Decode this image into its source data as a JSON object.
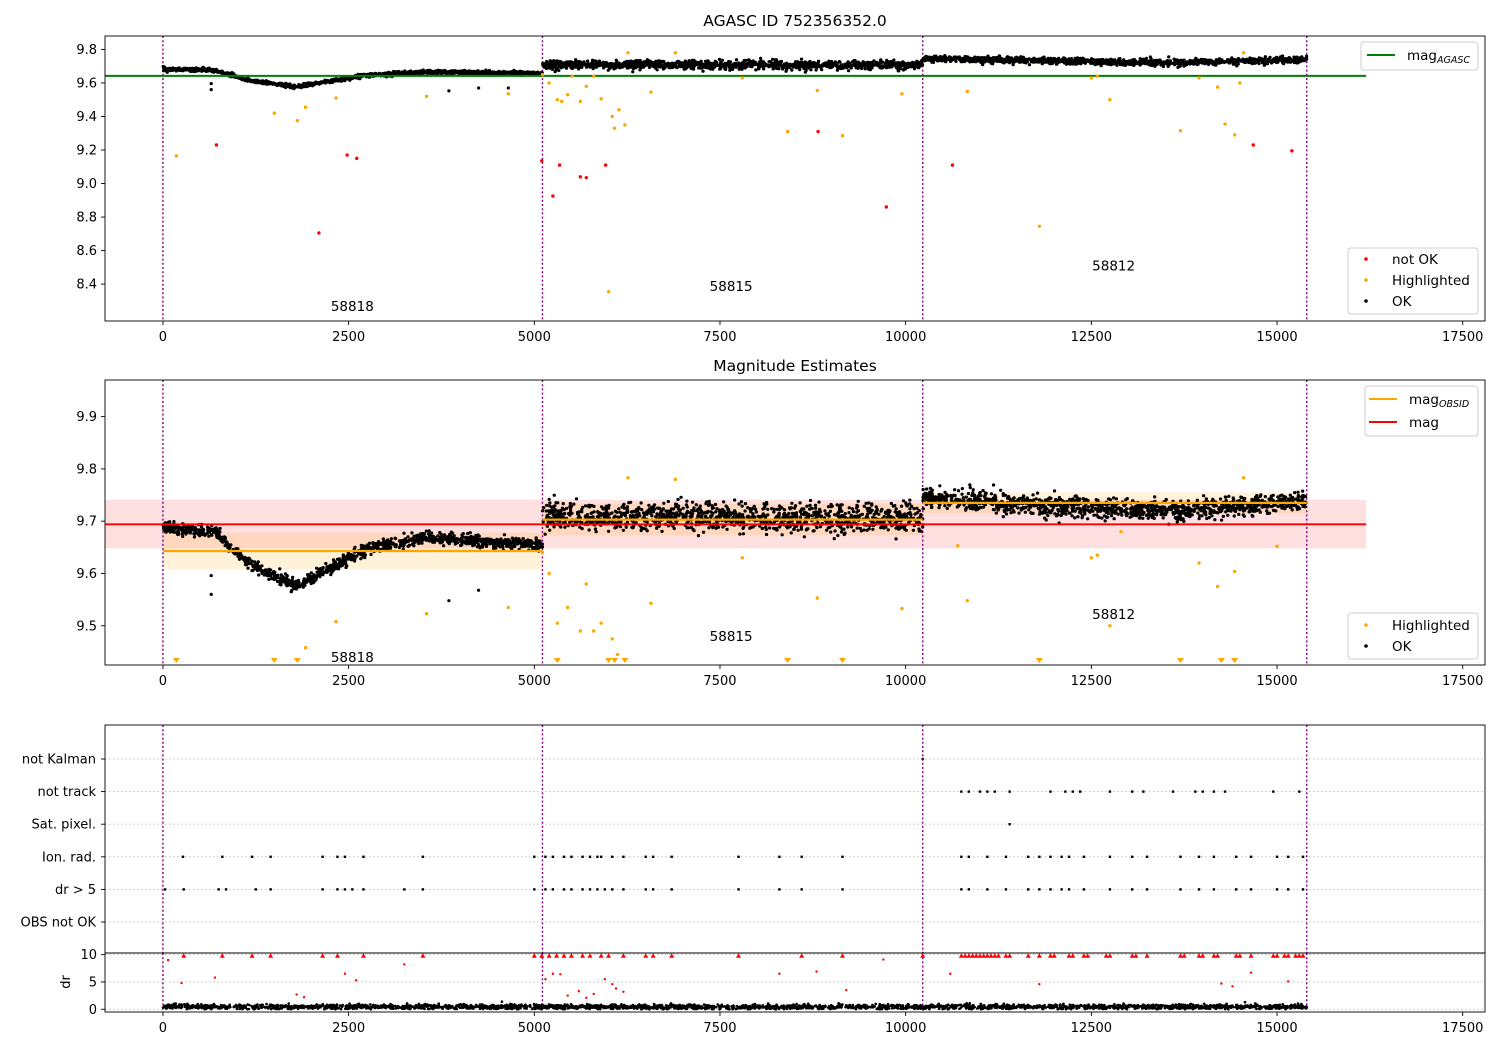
{
  "chart_data": [
    {
      "type": "scatter",
      "title": "AGASC ID 752356352.0",
      "xlim": [
        -780,
        17800
      ],
      "ylim": [
        8.18,
        9.88
      ],
      "x_ticks": [
        0,
        2500,
        5000,
        7500,
        10000,
        12500,
        15000,
        17500
      ],
      "y_ticks": [
        8.4,
        8.6,
        8.8,
        9.0,
        9.2,
        9.4,
        9.6,
        9.8
      ],
      "obsid_boundaries": [
        0,
        5110,
        10230,
        15400
      ],
      "obsid_labels": [
        {
          "text": "58818",
          "x": 2550,
          "y": 8.27
        },
        {
          "text": "58815",
          "x": 7650,
          "y": 8.39
        },
        {
          "text": "58812",
          "x": 12800,
          "y": 8.51
        }
      ],
      "lines": [
        {
          "name": "mag",
          "sub": "AGASC",
          "color": "#008000",
          "x": [
            -780,
            16200
          ],
          "y": [
            9.642,
            9.642
          ]
        }
      ],
      "ok_segments": [
        {
          "x0": 0,
          "x1": 5110,
          "shape": [
            [
              0,
              9.683
            ],
            [
              700,
              9.675
            ],
            [
              1150,
              9.615
            ],
            [
              1800,
              9.577
            ],
            [
              2700,
              9.643
            ],
            [
              3500,
              9.665
            ],
            [
              5110,
              9.658
            ]
          ],
          "noise": 0.013
        },
        {
          "x0": 5110,
          "x1": 10230,
          "shape": [
            [
              5110,
              9.71
            ],
            [
              10230,
              9.705
            ]
          ],
          "noise": 0.03
        },
        {
          "x0": 10230,
          "x1": 15400,
          "shape": [
            [
              10230,
              9.745
            ],
            [
              12700,
              9.725
            ],
            [
              13600,
              9.72
            ],
            [
              15400,
              9.74
            ]
          ],
          "noise": 0.022
        }
      ],
      "ok_outliers": [
        [
          650,
          9.596
        ],
        [
          650,
          9.56
        ],
        [
          3850,
          9.553
        ],
        [
          4250,
          9.57
        ],
        [
          4650,
          9.57
        ]
      ],
      "highlighted": [
        [
          180,
          9.165
        ],
        [
          1500,
          9.42
        ],
        [
          1810,
          9.375
        ],
        [
          1920,
          9.455
        ],
        [
          2330,
          9.51
        ],
        [
          3550,
          9.52
        ],
        [
          4650,
          9.535
        ],
        [
          5110,
          9.65
        ],
        [
          5200,
          9.6
        ],
        [
          5310,
          9.5
        ],
        [
          5370,
          9.49
        ],
        [
          5450,
          9.53
        ],
        [
          5510,
          9.64
        ],
        [
          5620,
          9.49
        ],
        [
          5700,
          9.58
        ],
        [
          5800,
          9.64
        ],
        [
          5900,
          9.505
        ],
        [
          6000,
          8.355
        ],
        [
          6050,
          9.4
        ],
        [
          6080,
          9.33
        ],
        [
          6140,
          9.44
        ],
        [
          6220,
          9.35
        ],
        [
          6260,
          9.78
        ],
        [
          6570,
          9.545
        ],
        [
          6900,
          9.78
        ],
        [
          7800,
          9.63
        ],
        [
          8410,
          9.31
        ],
        [
          8810,
          9.555
        ],
        [
          9150,
          9.285
        ],
        [
          9950,
          9.535
        ],
        [
          10830,
          9.55
        ],
        [
          11800,
          8.745
        ],
        [
          12500,
          9.63
        ],
        [
          12580,
          9.64
        ],
        [
          12750,
          9.5
        ],
        [
          13700,
          9.315
        ],
        [
          13950,
          9.63
        ],
        [
          14200,
          9.575
        ],
        [
          14300,
          9.355
        ],
        [
          14430,
          9.29
        ],
        [
          14500,
          9.6
        ],
        [
          14550,
          9.78
        ]
      ],
      "not_ok": [
        [
          720,
          9.23
        ],
        [
          2100,
          8.705
        ],
        [
          2480,
          9.17
        ],
        [
          2610,
          9.15
        ],
        [
          5100,
          9.135
        ],
        [
          5250,
          8.925
        ],
        [
          5340,
          9.11
        ],
        [
          5620,
          9.04
        ],
        [
          5700,
          9.035
        ],
        [
          5960,
          9.11
        ],
        [
          8820,
          9.31
        ],
        [
          9740,
          8.86
        ],
        [
          10630,
          9.11
        ],
        [
          14680,
          9.23
        ],
        [
          15200,
          9.195
        ]
      ],
      "legend_top": [
        {
          "label": "mag",
          "sub": "AGASC",
          "color": "#008000"
        }
      ],
      "legend_bottom": [
        {
          "label": "not OK",
          "color": "#ff0000"
        },
        {
          "label": "Highlighted",
          "color": "#ffa500"
        },
        {
          "label": "OK",
          "color": "#000000"
        }
      ]
    },
    {
      "type": "scatter",
      "title": "Magnitude Estimates",
      "xlim": [
        -780,
        17800
      ],
      "ylim": [
        9.425,
        9.97
      ],
      "x_ticks": [
        0,
        2500,
        5000,
        7500,
        10000,
        12500,
        15000,
        17500
      ],
      "y_ticks": [
        9.5,
        9.6,
        9.7,
        9.8,
        9.9
      ],
      "obsid_boundaries": [
        0,
        5110,
        10230,
        15400
      ],
      "obsid_labels": [
        {
          "text": "58818",
          "x": 2550,
          "y": 9.44
        },
        {
          "text": "58815",
          "x": 7650,
          "y": 9.48
        },
        {
          "text": "58812",
          "x": 12800,
          "y": 9.523
        }
      ],
      "mean_mag": 9.694,
      "mean_band": [
        9.648,
        9.741
      ],
      "obsid_mags": [
        {
          "x0": 0,
          "x1": 5110,
          "value": 9.643,
          "band": [
            9.608,
            9.678
          ]
        },
        {
          "x0": 5110,
          "x1": 10230,
          "value": 9.703,
          "band": [
            9.673,
            9.733
          ]
        },
        {
          "x0": 10230,
          "x1": 15400,
          "value": 9.735,
          "band": [
            9.715,
            9.755
          ]
        }
      ],
      "ok_segments": [
        {
          "x0": 0,
          "x1": 5110,
          "shape": [
            [
              0,
              9.688
            ],
            [
              700,
              9.68
            ],
            [
              1150,
              9.62
            ],
            [
              1800,
              9.575
            ],
            [
              2700,
              9.645
            ],
            [
              3500,
              9.668
            ],
            [
              5110,
              9.655
            ]
          ],
          "noise": 0.013
        },
        {
          "x0": 5110,
          "x1": 10230,
          "shape": [
            [
              5110,
              9.71
            ],
            [
              10230,
              9.705
            ]
          ],
          "noise": 0.032
        },
        {
          "x0": 10230,
          "x1": 15400,
          "shape": [
            [
              10230,
              9.745
            ],
            [
              12700,
              9.722
            ],
            [
              13600,
              9.72
            ],
            [
              15400,
              9.74
            ]
          ],
          "noise": 0.022
        }
      ],
      "ok_outliers": [
        [
          650,
          9.596
        ],
        [
          650,
          9.56
        ],
        [
          3850,
          9.548
        ],
        [
          4250,
          9.568
        ]
      ],
      "highlighted": [
        [
          2330,
          9.508
        ],
        [
          1920,
          9.458
        ],
        [
          3550,
          9.523
        ],
        [
          4650,
          9.535
        ],
        [
          5110,
          9.64
        ],
        [
          5200,
          9.6
        ],
        [
          5310,
          9.505
        ],
        [
          5450,
          9.535
        ],
        [
          5620,
          9.49
        ],
        [
          5700,
          9.58
        ],
        [
          5800,
          9.49
        ],
        [
          5900,
          9.505
        ],
        [
          6050,
          9.475
        ],
        [
          6120,
          9.445
        ],
        [
          6260,
          9.783
        ],
        [
          6570,
          9.543
        ],
        [
          6900,
          9.78
        ],
        [
          7800,
          9.63
        ],
        [
          8810,
          9.553
        ],
        [
          9950,
          9.533
        ],
        [
          10830,
          9.548
        ],
        [
          12500,
          9.63
        ],
        [
          12580,
          9.635
        ],
        [
          12750,
          9.5
        ],
        [
          13950,
          9.62
        ],
        [
          14200,
          9.575
        ],
        [
          14430,
          9.604
        ],
        [
          14550,
          9.783
        ],
        [
          15000,
          9.652
        ],
        [
          10700,
          9.653
        ],
        [
          12900,
          9.68
        ]
      ],
      "off_scale_low": [
        180,
        1500,
        1810,
        5310,
        6000,
        6080,
        6220,
        8410,
        9150,
        11800,
        13700,
        14250,
        14430
      ],
      "legend_top": [
        {
          "label": "mag",
          "sub": "OBSID",
          "color": "#ffa500"
        },
        {
          "label": "mag",
          "sub": "",
          "color": "#ff0000"
        }
      ],
      "legend_bottom": [
        {
          "label": "Highlighted",
          "color": "#ffa500"
        },
        {
          "label": "OK",
          "color": "#000000"
        }
      ]
    },
    {
      "type": "scatter",
      "title": "",
      "xlim": [
        -780,
        17800
      ],
      "x_ticks": [
        0,
        2500,
        5000,
        7500,
        10000,
        12500,
        15000,
        17500
      ],
      "obsid_boundaries": [
        0,
        5110,
        10230,
        15400
      ],
      "flag_rows": [
        "not Kalman",
        "not track",
        "Sat. pixel.",
        "Ion. rad.",
        "dr > 5",
        "OBS not OK"
      ],
      "flag_points": {
        "not Kalman": [
          10230
        ],
        "not track": [
          10750,
          10850,
          11000,
          11100,
          11200,
          11400,
          11950,
          12150,
          12250,
          12350,
          12750,
          13050,
          13200,
          13600,
          13900,
          14000,
          14150,
          14300,
          14950,
          15300
        ],
        "Sat. pixel.": [
          11400
        ],
        "Ion. rad.": [
          270,
          800,
          1200,
          1450,
          2150,
          2350,
          2450,
          2700,
          3500,
          5000,
          5150,
          5250,
          5400,
          5500,
          5650,
          5750,
          5850,
          5900,
          6050,
          6200,
          6500,
          6600,
          6850,
          7750,
          8300,
          8600,
          9150,
          10750,
          10850,
          11100,
          11350,
          11650,
          11800,
          11950,
          12100,
          12200,
          12400,
          12750,
          13050,
          13250,
          13700,
          13950,
          14150,
          14450,
          14650,
          15000,
          15150,
          15350
        ],
        "dr > 5": [
          30,
          280,
          750,
          850,
          1250,
          1450,
          2150,
          2350,
          2450,
          2550,
          2700,
          3250,
          3500,
          5000,
          5150,
          5250,
          5400,
          5500,
          5650,
          5750,
          5850,
          5950,
          6050,
          6200,
          6500,
          6600,
          6850,
          7750,
          8300,
          8600,
          9150,
          10750,
          10850,
          11100,
          11350,
          11650,
          11800,
          11950,
          12100,
          12200,
          12400,
          12750,
          13050,
          13250,
          13700,
          13950,
          14150,
          14450,
          14650,
          15000,
          15150,
          15350
        ],
        "OBS not OK": []
      },
      "dr_ylim": [
        -0.5,
        10.3
      ],
      "dr_yticks": [
        0,
        5,
        10
      ],
      "dr_ylabel": "dr",
      "dr_low_level": 0.45,
      "dr_spikes": [
        [
          70,
          9
        ],
        [
          250,
          4.8
        ],
        [
          700,
          5.8
        ],
        [
          1800,
          2.7
        ],
        [
          1900,
          2.2
        ],
        [
          2450,
          6.5
        ],
        [
          2600,
          5.3
        ],
        [
          3250,
          8.2
        ],
        [
          5150,
          5.5
        ],
        [
          5250,
          6.5
        ],
        [
          5350,
          6.4
        ],
        [
          5450,
          2.5
        ],
        [
          5600,
          3.3
        ],
        [
          5700,
          2.1
        ],
        [
          5800,
          2.8
        ],
        [
          5950,
          5.5
        ],
        [
          6050,
          4.6
        ],
        [
          6100,
          3.8
        ],
        [
          6200,
          3.2
        ],
        [
          8300,
          6.5
        ],
        [
          8800,
          6.9
        ],
        [
          9200,
          3.5
        ],
        [
          9700,
          9.1
        ],
        [
          10600,
          6.5
        ],
        [
          11800,
          4.6
        ],
        [
          14250,
          4.7
        ],
        [
          14400,
          4.2
        ],
        [
          14650,
          6.7
        ],
        [
          15150,
          5.1
        ]
      ],
      "dr_clipped": [
        280,
        800,
        1200,
        1450,
        2150,
        2350,
        2700,
        3500,
        5000,
        5100,
        5200,
        5300,
        5400,
        5500,
        5650,
        5750,
        5900,
        6000,
        6200,
        6500,
        6600,
        6850,
        7750,
        8600,
        9150,
        10230,
        10750,
        10800,
        10850,
        10900,
        10950,
        11000,
        11050,
        11100,
        11150,
        11200,
        11250,
        11350,
        11400,
        11650,
        11800,
        11950,
        12000,
        12200,
        12250,
        12400,
        12450,
        12700,
        12750,
        13050,
        13100,
        13250,
        13700,
        13750,
        13950,
        14000,
        14150,
        14200,
        14450,
        14500,
        14650,
        14950,
        15000,
        15100,
        15150,
        15250,
        15300,
        15350
      ]
    }
  ]
}
